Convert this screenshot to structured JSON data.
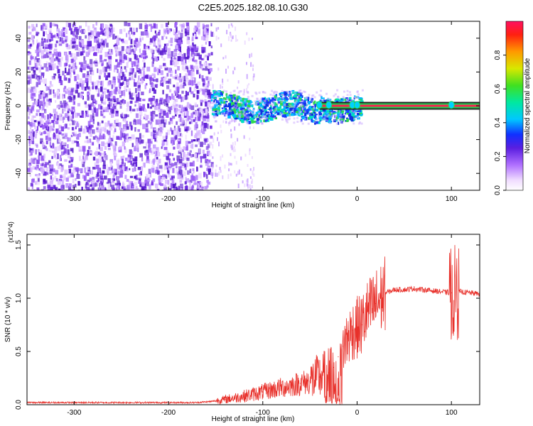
{
  "title": "C2E5.2025.182.08.10.G30",
  "chart_data": [
    {
      "type": "heatmap",
      "xlabel": "Height of straight line (km)",
      "ylabel": "Frequency (Hz)",
      "xlim": [
        -350,
        130
      ],
      "ylim": [
        -50,
        50
      ],
      "x_ticks": [
        -300,
        -200,
        -100,
        0,
        100
      ],
      "y_ticks": [
        -40,
        -20,
        0,
        20,
        40
      ],
      "colorbar": {
        "label": "Normalized spectral amplitude",
        "ticks": [
          "0.0",
          "0.2",
          "0.4",
          "0.6",
          "0.8"
        ],
        "range": [
          0,
          1
        ]
      },
      "regions": [
        {
          "name": "noise",
          "x_range": [
            -350,
            -155
          ],
          "y_range": [
            -50,
            50
          ],
          "amplitude": 0.15
        },
        {
          "name": "scattered",
          "x_range": [
            -155,
            -110
          ],
          "y_range": [
            -50,
            50
          ],
          "amplitude": 0.05
        },
        {
          "name": "broadened-signal",
          "x_range": [
            -155,
            5
          ],
          "y_center": 0,
          "y_halfwidth": 7,
          "amplitude": 0.35
        },
        {
          "name": "narrow-carrier",
          "x_range": [
            -40,
            130
          ],
          "y_center": 0,
          "y_halfwidth": 1.5,
          "amplitude": 1.0
        }
      ]
    },
    {
      "type": "line",
      "xlabel": "Height of straight line (km)",
      "ylabel": "SNR (10 * v/v)",
      "y_scale_label": "(x10^4)",
      "xlim": [
        -350,
        130
      ],
      "ylim": [
        0,
        1.6
      ],
      "x_ticks": [
        -300,
        -200,
        -100,
        0,
        100
      ],
      "y_ticks": [
        "0.0",
        "0.5",
        "1.0",
        "1.5"
      ],
      "series_color": "#e8302a",
      "x": [
        -350,
        -300,
        -250,
        -200,
        -170,
        -155,
        -140,
        -120,
        -100,
        -80,
        -60,
        -50,
        -40,
        -30,
        -25,
        -20,
        -15,
        -10,
        -5,
        0,
        5,
        10,
        20,
        30,
        40,
        50,
        60,
        70,
        80,
        90,
        100,
        110,
        120,
        130
      ],
      "y": [
        0.02,
        0.02,
        0.02,
        0.02,
        0.02,
        0.03,
        0.05,
        0.08,
        0.12,
        0.16,
        0.2,
        0.22,
        0.26,
        0.3,
        0.35,
        0.45,
        0.55,
        0.62,
        0.7,
        0.72,
        0.75,
        0.85,
        0.95,
        1.05,
        1.08,
        1.08,
        1.09,
        1.08,
        1.07,
        1.06,
        1.05,
        1.06,
        1.05,
        1.04
      ]
    }
  ]
}
